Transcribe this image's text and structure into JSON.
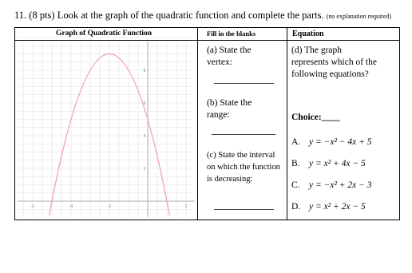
{
  "question": "11. (8 pts) Look at the graph of the quadratic function and complete the parts.",
  "note": "(no explanation required)",
  "table": {
    "headers": [
      "Graph of Quadratic Function",
      "Fill in the blanks",
      "Equation"
    ],
    "graph": {
      "x_labels": [
        "-6",
        "-4",
        "-2",
        "2"
      ],
      "y_labels": [
        "8",
        "6",
        "4",
        "2"
      ]
    },
    "blanks": [
      "(a) State the vertex:",
      "(b) State the range:",
      "(c) State the interval on which the function is decreasing:"
    ],
    "equation": {
      "prompt": "(d) The graph represents which of the following equations?",
      "choice": "Choice:____",
      "options": [
        {
          "letter": "A.",
          "equation": "y = −x² − 4x + 5"
        },
        {
          "letter": "B.",
          "equation": "y = x² + 4x − 5"
        },
        {
          "letter": "C.",
          "equation": "y = −x² + 2x − 3"
        },
        {
          "letter": "D.",
          "equation": "y = x² + 2x − 5"
        }
      ]
    }
  }
}
